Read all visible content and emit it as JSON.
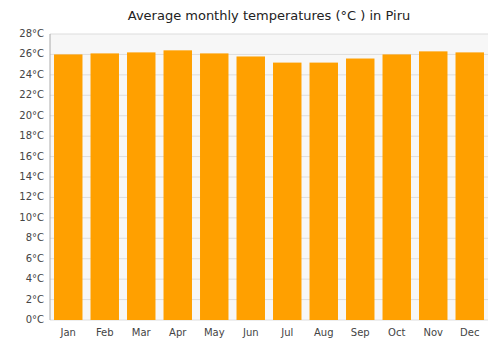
{
  "chart_data": {
    "type": "bar",
    "title": "Average monthly temperatures (°C ) in Piru",
    "categories": [
      "Jan",
      "Feb",
      "Mar",
      "Apr",
      "May",
      "Jun",
      "Jul",
      "Aug",
      "Sep",
      "Oct",
      "Nov",
      "Dec"
    ],
    "values": [
      26.0,
      26.1,
      26.2,
      26.4,
      26.1,
      25.8,
      25.2,
      25.2,
      25.6,
      26.0,
      26.3,
      26.2
    ],
    "color": "#FFA000",
    "ylim": [
      0,
      28
    ],
    "yticks": [
      {
        "value": 0,
        "label": "0°C"
      },
      {
        "value": 2,
        "label": "2°C"
      },
      {
        "value": 4,
        "label": "4°C"
      },
      {
        "value": 6,
        "label": "6°C"
      },
      {
        "value": 8,
        "label": "8°C"
      },
      {
        "value": 10,
        "label": "10°C"
      },
      {
        "value": 12,
        "label": "12°C"
      },
      {
        "value": 14,
        "label": "14°C"
      },
      {
        "value": 16,
        "label": "16°C"
      },
      {
        "value": 18,
        "label": "18°C"
      },
      {
        "value": 20,
        "label": "20°C"
      },
      {
        "value": 22,
        "label": "22°C"
      },
      {
        "value": 24,
        "label": "24°C"
      },
      {
        "value": 26,
        "label": "26°C"
      },
      {
        "value": 28,
        "label": "28°C"
      }
    ],
    "grid": true
  }
}
